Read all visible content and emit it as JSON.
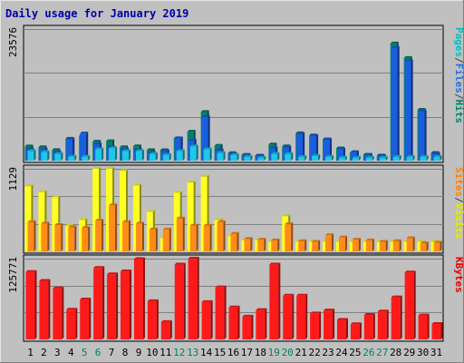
{
  "chart_data": {
    "type": "bar",
    "title": "Daily usage for January 2019",
    "days": [
      "1",
      "2",
      "3",
      "4",
      "5",
      "6",
      "7",
      "8",
      "9",
      "10",
      "11",
      "12",
      "13",
      "14",
      "15",
      "16",
      "17",
      "18",
      "19",
      "20",
      "21",
      "22",
      "23",
      "24",
      "25",
      "26",
      "27",
      "28",
      "29",
      "30",
      "31"
    ],
    "weekend_days": [
      "5",
      "6",
      "12",
      "13",
      "19",
      "20",
      "26",
      "27"
    ],
    "panels": [
      {
        "id": "hits-files-pages",
        "ymax_label": "23576",
        "ymax": 23576,
        "legend": [
          {
            "label": "Pages",
            "color": "#00c0c0"
          },
          {
            "label": "/",
            "color": "#404040"
          },
          {
            "label": "Files",
            "color": "#2070e0"
          },
          {
            "label": "/",
            "color": "#404040"
          },
          {
            "label": "Hits",
            "color": "#00806a"
          }
        ],
        "series": [
          {
            "name": "Hits",
            "color": "#00806a",
            "values": [
              2550,
              2390,
              1880,
              3920,
              4430,
              3400,
              3480,
              2390,
              2560,
              1870,
              1870,
              3990,
              5190,
              8720,
              2660,
              1350,
              1020,
              890,
              2890,
              2560,
              4900,
              4520,
              3830,
              2200,
              1400,
              1050,
              920,
              20990,
              18390,
              9100,
              1380
            ]
          },
          {
            "name": "Files",
            "color": "#1a5ee0",
            "values": [
              2040,
              2040,
              1530,
              3820,
              4850,
              2900,
              2390,
              2040,
              1870,
              1360,
              1700,
              4000,
              3570,
              7820,
              1870,
              1190,
              1020,
              850,
              2210,
              2380,
              4760,
              4420,
              3740,
              2040,
              1530,
              1020,
              850,
              20200,
              17850,
              8830,
              1190
            ]
          },
          {
            "name": "Pages",
            "color": "#20c8e8",
            "values": [
              1700,
              1530,
              1190,
              700,
              700,
              2040,
              2210,
              1700,
              1700,
              1190,
              1020,
              1700,
              2550,
              2040,
              1360,
              1020,
              680,
              510,
              1190,
              1190,
              680,
              850,
              680,
              510,
              510,
              510,
              510,
              680,
              680,
              680,
              680
            ]
          }
        ]
      },
      {
        "id": "visits-sites",
        "ymax_label": "1129",
        "ymax": 1129,
        "legend": [
          {
            "label": "Sites",
            "color": "#ff8000"
          },
          {
            "label": "/",
            "color": "#404040"
          },
          {
            "label": "Visits",
            "color": "#e8e800"
          }
        ],
        "series": [
          {
            "name": "Visits",
            "color": "#ffff22",
            "values": [
              890,
              810,
              740,
              350,
              430,
              1129,
              1129,
              1100,
              900,
              540,
              180,
              800,
              940,
              1020,
              430,
              210,
              150,
              150,
              130,
              480,
              130,
              130,
              130,
              130,
              130,
              130,
              130,
              130,
              130,
              130,
              130
            ]
          },
          {
            "name": "Sites",
            "color": "#ff8c1a",
            "values": [
              400,
              380,
              360,
              330,
              320,
              420,
              630,
              400,
              380,
              300,
              300,
              450,
              350,
              350,
              400,
              240,
              170,
              160,
              150,
              370,
              140,
              130,
              220,
              190,
              160,
              150,
              130,
              140,
              180,
              110,
              120
            ]
          }
        ]
      },
      {
        "id": "kbytes",
        "ymax_label": "125771",
        "ymax": 125771,
        "legend": [
          {
            "label": "KBytes",
            "color": "#e00000"
          }
        ],
        "series": [
          {
            "name": "KBytes",
            "color": "#ff1a1a",
            "values": [
              104900,
              91200,
              79500,
              46300,
              62200,
              111200,
              101400,
              105900,
              125000,
              59600,
              27100,
              116500,
              125771,
              58100,
              81000,
              49800,
              35500,
              45800,
              116500,
              68100,
              68100,
              40400,
              45000,
              30400,
              23600,
              38100,
              43500,
              65600,
              104200,
              37300,
              24000
            ]
          }
        ]
      }
    ]
  }
}
